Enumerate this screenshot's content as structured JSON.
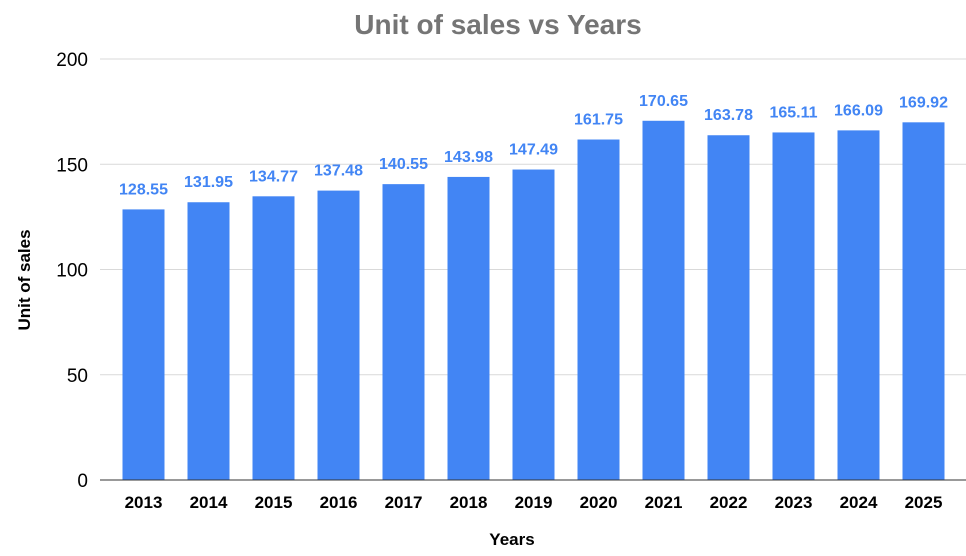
{
  "chart_data": {
    "type": "bar",
    "title": "Unit of sales vs Years",
    "xlabel": "Years",
    "ylabel": "Unit of sales",
    "ylim": [
      0,
      200
    ],
    "yticks": [
      "0",
      "50",
      "100",
      "150",
      "200"
    ],
    "categories": [
      "2013",
      "2014",
      "2015",
      "2016",
      "2017",
      "2018",
      "2019",
      "2020",
      "2021",
      "2022",
      "2023",
      "2024",
      "2025"
    ],
    "values": [
      128.55,
      131.95,
      134.77,
      137.48,
      140.55,
      143.98,
      147.49,
      161.75,
      170.65,
      163.78,
      165.11,
      166.09,
      169.92
    ],
    "data_labels": [
      "128.55",
      "131.95",
      "134.77",
      "137.48",
      "140.55",
      "143.98",
      "147.49",
      "161.75",
      "170.65",
      "163.78",
      "165.11",
      "166.09",
      "169.92"
    ],
    "grid": true,
    "legend": "none",
    "colors": {
      "bar": "#4285f4",
      "data_label": "#4285f4",
      "title": "#757575"
    }
  }
}
